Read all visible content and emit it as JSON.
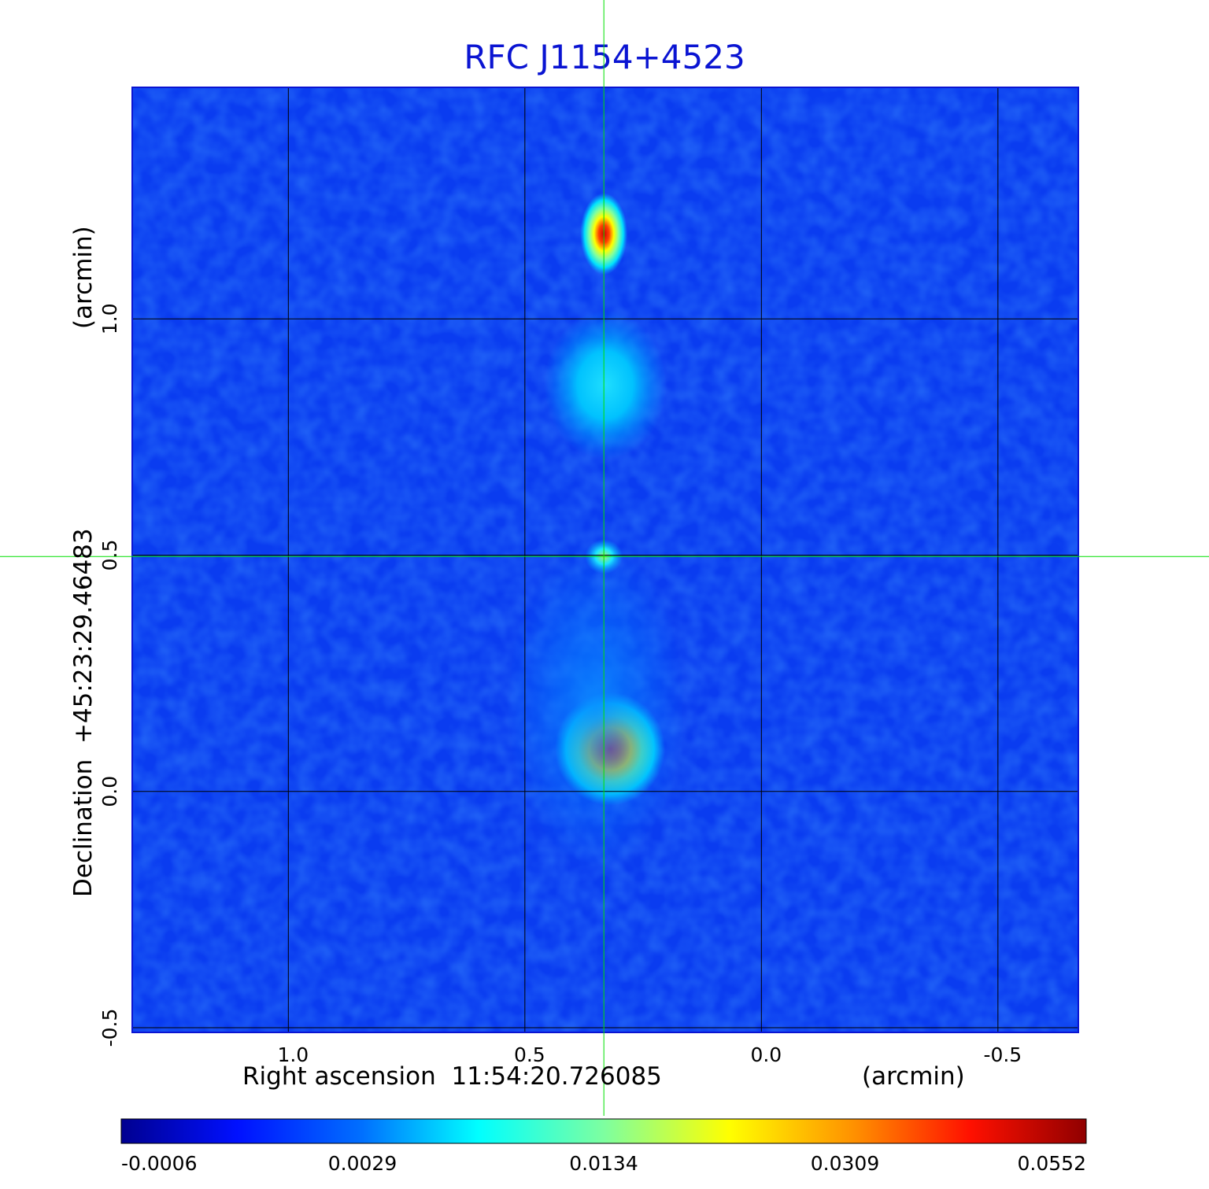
{
  "chart_data": {
    "type": "heatmap",
    "title": "RFC J1154+4523",
    "xlabel": "Right ascension  11:54:20.726085",
    "xlabel_unit": "(arcmin)",
    "ylabel": "Declination  +45:23:29.46483",
    "ylabel_unit": "(arcmin)",
    "xlim": [
      1.33,
      -0.67
    ],
    "ylim": [
      -0.51,
      1.49
    ],
    "x_ticks": [
      1.0,
      0.5,
      0.0,
      -0.5
    ],
    "x_tick_labels": [
      "1.0",
      "0.5",
      "0.0",
      "-0.5"
    ],
    "y_ticks": [
      -0.5,
      0.0,
      0.5,
      1.0
    ],
    "y_tick_labels": [
      "-0.5",
      "0.0",
      "0.5",
      "1.0"
    ],
    "grid": true,
    "crosshair": {
      "x": 0.333,
      "y": 0.497
    },
    "colormap": "jet",
    "colorbar": {
      "tick_labels": [
        "-0.0006",
        "0.0029",
        "0.0134",
        "0.0309",
        "0.0552"
      ],
      "placement": "bottom"
    },
    "components": [
      {
        "name": "north hotspot",
        "x": 0.333,
        "y": 1.18,
        "peak": 0.0552
      },
      {
        "name": "north lobe",
        "x": 0.33,
        "y": 0.86,
        "peak": 0.012
      },
      {
        "name": "core",
        "x": 0.333,
        "y": 0.497,
        "peak": 0.011
      },
      {
        "name": "south hotspot",
        "x": 0.32,
        "y": 0.09,
        "peak": 0.046
      },
      {
        "name": "south lobe",
        "x": 0.35,
        "y": 0.25,
        "peak": 0.006
      }
    ]
  },
  "colors": {
    "title": "#0a14d2",
    "crosshair": "#00e000",
    "grid": "#000000"
  }
}
